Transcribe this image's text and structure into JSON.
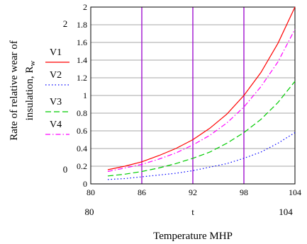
{
  "chart_data": {
    "type": "line",
    "ylabel_line1": "Rate of relative wear of",
    "ylabel_line2_main": "insulation, R",
    "ylabel_line2_sub": "w",
    "xlabel": "Temperature MHP",
    "xlim": [
      80,
      104
    ],
    "ylim": [
      0,
      2
    ],
    "x_ticks": [
      "80",
      "86",
      "92",
      "98",
      "104"
    ],
    "y_ticks": [
      "0",
      "0.2",
      "0.4",
      "0.6",
      "0.8",
      "1",
      "1.2",
      "1.4",
      "1.6",
      "1.8",
      "2"
    ],
    "outer_y_labels": [
      "2",
      "0"
    ],
    "outer_x_labels": [
      "80",
      "t",
      "104"
    ],
    "vertical_markers": [
      86,
      92,
      98
    ],
    "marker_color": "#9900cc",
    "grid": true,
    "legend_position": "left",
    "x": [
      82,
      84,
      86,
      88,
      90,
      92,
      94,
      96,
      98,
      100,
      102,
      104
    ],
    "series": [
      {
        "name": "V1",
        "color": "#ff0000",
        "dash": "solid",
        "values": [
          0.16,
          0.2,
          0.25,
          0.32,
          0.4,
          0.5,
          0.63,
          0.79,
          1.0,
          1.26,
          1.59,
          2.0
        ]
      },
      {
        "name": "V2",
        "color": "#0000ff",
        "dash": "dotted",
        "values": [
          0.05,
          0.06,
          0.08,
          0.1,
          0.12,
          0.15,
          0.19,
          0.23,
          0.29,
          0.36,
          0.46,
          0.58
        ]
      },
      {
        "name": "V3",
        "color": "#00cc00",
        "dash": "dashed",
        "values": [
          0.09,
          0.11,
          0.14,
          0.18,
          0.23,
          0.29,
          0.36,
          0.46,
          0.58,
          0.73,
          0.92,
          1.16
        ]
      },
      {
        "name": "V4",
        "color": "#ff00ff",
        "dash": "dashdot",
        "values": [
          0.14,
          0.18,
          0.22,
          0.28,
          0.35,
          0.44,
          0.55,
          0.69,
          0.87,
          1.1,
          1.38,
          1.75
        ]
      }
    ]
  }
}
